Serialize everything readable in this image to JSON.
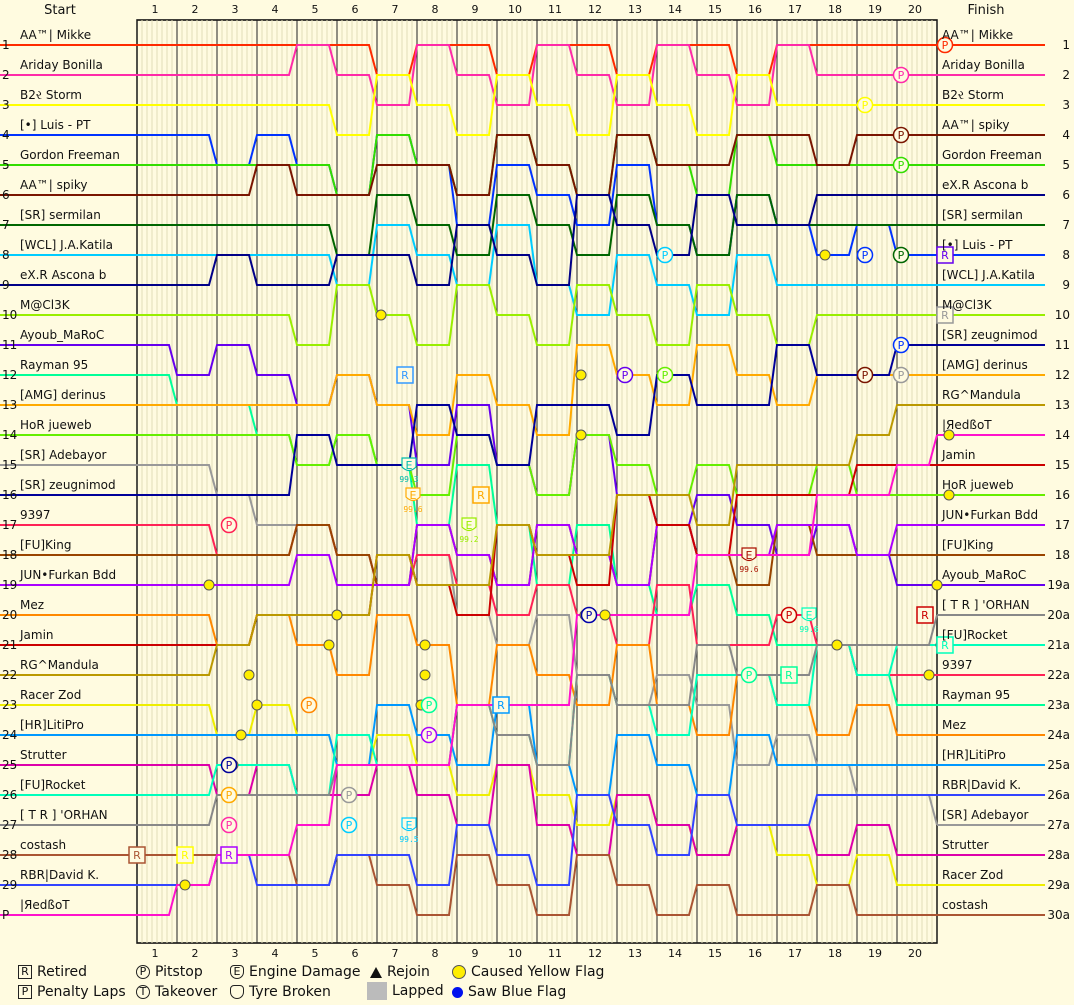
{
  "header": {
    "start": "Start",
    "finish": "Finish"
  },
  "chart_data": {
    "type": "line",
    "laps": [
      1,
      2,
      3,
      4,
      5,
      6,
      7,
      8,
      9,
      10,
      11,
      12,
      13,
      14,
      15,
      16,
      17,
      18,
      19,
      20
    ],
    "start_grid": [
      {
        "pos": "1",
        "name": "AA™| Mikke",
        "color": "#ff2a00"
      },
      {
        "pos": "2",
        "name": "Ariday Bonilla",
        "color": "#ff2aa8"
      },
      {
        "pos": "3",
        "name": "B2ર Storm",
        "color": "#ffff00"
      },
      {
        "pos": "4",
        "name": "[•] Luis - PT",
        "color": "#0033ff"
      },
      {
        "pos": "5",
        "name": "Gordon Freeman",
        "color": "#33dd00"
      },
      {
        "pos": "6",
        "name": "AA™| spiky",
        "color": "#7a1500"
      },
      {
        "pos": "7",
        "name": "[SR] sermilan",
        "color": "#006600"
      },
      {
        "pos": "8",
        "name": "[WCL] J.A.Katila",
        "color": "#00ccff"
      },
      {
        "pos": "9",
        "name": "eX.R Ascona b",
        "color": "#000088"
      },
      {
        "pos": "10",
        "name": "M@Cl3K",
        "color": "#99ee00"
      },
      {
        "pos": "11",
        "name": "Ayoub_MaRoC",
        "color": "#6600ee"
      },
      {
        "pos": "12",
        "name": "Rayman 95",
        "color": "#00ff99"
      },
      {
        "pos": "13",
        "name": "[AMG] derinus",
        "color": "#ffaa00"
      },
      {
        "pos": "14",
        "name": "HoR jueweb",
        "color": "#66ee00"
      },
      {
        "pos": "15",
        "name": "[SR] Adebayor",
        "color": "#999999"
      },
      {
        "pos": "16",
        "name": "[SR] zeugnimod",
        "color": "#000099"
      },
      {
        "pos": "17",
        "name": "9397",
        "color": "#ff2255"
      },
      {
        "pos": "18",
        "name": "[FU]King",
        "color": "#994400"
      },
      {
        "pos": "19",
        "name": "JUN•Furkan Bdd",
        "color": "#aa00ff"
      },
      {
        "pos": "20",
        "name": "Mez",
        "color": "#ff8800"
      },
      {
        "pos": "21",
        "name": "Jamin",
        "color": "#cc0000"
      },
      {
        "pos": "22",
        "name": "RG^Mandula",
        "color": "#bb9900"
      },
      {
        "pos": "23",
        "name": "Racer Zod",
        "color": "#eeee00"
      },
      {
        "pos": "24",
        "name": "[HR]LitiPro",
        "color": "#0099ff"
      },
      {
        "pos": "25",
        "name": "Strutter",
        "color": "#dd00aa"
      },
      {
        "pos": "26",
        "name": "[FU]Rocket",
        "color": "#00ffbb"
      },
      {
        "pos": "27",
        "name": "[ T R ] 'ORHAN",
        "color": "#888888"
      },
      {
        "pos": "28",
        "name": "costash",
        "color": "#aa5533"
      },
      {
        "pos": "29",
        "name": "RBR|David K.",
        "color": "#3344ff"
      },
      {
        "pos": "P",
        "name": "|ЯedßoT",
        "color": "#ff11cc"
      }
    ],
    "finish_order": [
      {
        "pos": "1",
        "name": "AA™| Mikke",
        "color": "#ff2a00"
      },
      {
        "pos": "2",
        "name": "Ariday Bonilla",
        "color": "#ff2aa8"
      },
      {
        "pos": "3",
        "name": "B2ર Storm",
        "color": "#ffff00"
      },
      {
        "pos": "4",
        "name": "AA™| spiky",
        "color": "#7a1500"
      },
      {
        "pos": "5",
        "name": "Gordon Freeman",
        "color": "#33dd00"
      },
      {
        "pos": "6",
        "name": "eX.R Ascona b",
        "color": "#00ccff"
      },
      {
        "pos": "7",
        "name": "[SR] sermilan",
        "color": "#006600"
      },
      {
        "pos": "8",
        "name": "[•] Luis - PT",
        "color": "#0033ff"
      },
      {
        "pos": "9",
        "name": "[WCL] J.A.Katila",
        "color": "#000088"
      },
      {
        "pos": "10",
        "name": "M@Cl3K",
        "color": "#99ee00"
      },
      {
        "pos": "11",
        "name": "[SR] zeugnimod",
        "color": "#000099"
      },
      {
        "pos": "12",
        "name": "[AMG] derinus",
        "color": "#ffaa00"
      },
      {
        "pos": "13",
        "name": "RG^Mandula",
        "color": "#bb9900"
      },
      {
        "pos": "14",
        "name": "|ЯedßoT",
        "color": "#ff11cc"
      },
      {
        "pos": "15",
        "name": "Jamin",
        "color": "#cc0000"
      },
      {
        "pos": "16",
        "name": "HoR jueweb",
        "color": "#66ee00"
      },
      {
        "pos": "17",
        "name": "JUN•Furkan Bdd",
        "color": "#aa00ff"
      },
      {
        "pos": "18",
        "name": "[FU]King",
        "color": "#994400"
      },
      {
        "pos": "19a",
        "name": "Ayoub_MaRoC",
        "color": "#6600ee"
      },
      {
        "pos": "20a",
        "name": "[ T R ] 'ORHAN",
        "color": "#888888"
      },
      {
        "pos": "21a",
        "name": "[FU]Rocket",
        "color": "#00ffbb"
      },
      {
        "pos": "22a",
        "name": "9397",
        "color": "#ff2255"
      },
      {
        "pos": "23a",
        "name": "Rayman 95",
        "color": "#00ff99"
      },
      {
        "pos": "24a",
        "name": "Mez",
        "color": "#ff8800"
      },
      {
        "pos": "25a",
        "name": "[HR]LitiPro",
        "color": "#0099ff"
      },
      {
        "pos": "26a",
        "name": "RBR|David K.",
        "color": "#3344ff"
      },
      {
        "pos": "27a",
        "name": "[SR] Adebayor",
        "color": "#999999"
      },
      {
        "pos": "28a",
        "name": "Strutter",
        "color": "#dd00aa"
      },
      {
        "pos": "29a",
        "name": "Racer Zod",
        "color": "#eeee00"
      },
      {
        "pos": "30a",
        "name": "costash",
        "color": "#aa5533"
      }
    ],
    "events": [
      {
        "lap": 20.2,
        "pos": 1,
        "type": "P",
        "color": "#ff2a00"
      },
      {
        "lap": 19.1,
        "pos": 2,
        "type": "P",
        "color": "#ff2aa8"
      },
      {
        "lap": 18.2,
        "pos": 3,
        "type": "P",
        "color": "#ffff00"
      },
      {
        "lap": 19.1,
        "pos": 4,
        "type": "P",
        "color": "#7a1500"
      },
      {
        "lap": 19.1,
        "pos": 5,
        "type": "P",
        "color": "#33dd00"
      },
      {
        "lap": 13.2,
        "pos": 8,
        "type": "P",
        "color": "#00ccff"
      },
      {
        "lap": 18.2,
        "pos": 8,
        "type": "P",
        "color": "#0033ff"
      },
      {
        "lap": 19.1,
        "pos": 8,
        "type": "P",
        "color": "#006600"
      },
      {
        "lap": 20.2,
        "pos": 8,
        "type": "R",
        "color": "#6600ee"
      },
      {
        "lap": 20.2,
        "pos": 10,
        "type": "R",
        "color": "#999999"
      },
      {
        "lap": 19.1,
        "pos": 11,
        "type": "P",
        "color": "#0033ff"
      },
      {
        "lap": 6.7,
        "pos": 12,
        "type": "R",
        "color": "#3399ff"
      },
      {
        "lap": 12.2,
        "pos": 12,
        "type": "P",
        "color": "#6600ee"
      },
      {
        "lap": 13.2,
        "pos": 12,
        "type": "P",
        "color": "#66ee00"
      },
      {
        "lap": 18.2,
        "pos": 12,
        "type": "P",
        "color": "#7a1500"
      },
      {
        "lap": 19.1,
        "pos": 12,
        "type": "P",
        "color": "#999999"
      },
      {
        "lap": 6.8,
        "pos": 15,
        "type": "E",
        "color": "#00bbaa"
      },
      {
        "lap": 6.9,
        "pos": 16,
        "type": "E",
        "color": "#ffaa00"
      },
      {
        "lap": 8.6,
        "pos": 16,
        "type": "R",
        "color": "#ffaa00"
      },
      {
        "lap": 8.3,
        "pos": 17,
        "type": "E",
        "color": "#99ee00"
      },
      {
        "lap": 2.3,
        "pos": 17,
        "type": "P",
        "color": "#ff2255"
      },
      {
        "lap": 15.3,
        "pos": 18,
        "type": "E",
        "color": "#aa1100"
      },
      {
        "lap": 11.3,
        "pos": 20,
        "type": "P",
        "color": "#0000aa"
      },
      {
        "lap": 16.3,
        "pos": 20,
        "type": "P",
        "color": "#cc0000"
      },
      {
        "lap": 16.8,
        "pos": 20,
        "type": "E",
        "color": "#00ffbb"
      },
      {
        "lap": 19.7,
        "pos": 20,
        "type": "R",
        "color": "#cc0000"
      },
      {
        "lap": 20.2,
        "pos": 21,
        "type": "R",
        "color": "#00ffbb"
      },
      {
        "lap": 15.3,
        "pos": 22,
        "type": "P",
        "color": "#00ff99"
      },
      {
        "lap": 16.3,
        "pos": 22,
        "type": "R",
        "color": "#00ff99"
      },
      {
        "lap": 4.3,
        "pos": 23,
        "type": "P",
        "color": "#ff8800"
      },
      {
        "lap": 7.3,
        "pos": 23,
        "type": "P",
        "color": "#00ff99"
      },
      {
        "lap": 9.1,
        "pos": 23,
        "type": "R",
        "color": "#0099ff"
      },
      {
        "lap": 7.3,
        "pos": 24,
        "type": "P",
        "color": "#aa00ff"
      },
      {
        "lap": 2.3,
        "pos": 25,
        "type": "P",
        "color": "#000099"
      },
      {
        "lap": 2.3,
        "pos": 26,
        "type": "P",
        "color": "#ffaa00"
      },
      {
        "lap": 5.3,
        "pos": 26,
        "type": "P",
        "color": "#999999"
      },
      {
        "lap": 2.3,
        "pos": 27,
        "type": "P",
        "color": "#ff2aa8"
      },
      {
        "lap": 5.3,
        "pos": 27,
        "type": "P",
        "color": "#00ccff"
      },
      {
        "lap": 6.8,
        "pos": 27,
        "type": "E",
        "color": "#00ccff"
      },
      {
        "lap": 0.0,
        "pos": 28,
        "type": "R",
        "color": "#aa5533"
      },
      {
        "lap": 1.2,
        "pos": 28,
        "type": "R",
        "color": "#ffff00"
      },
      {
        "lap": 2.3,
        "pos": 28,
        "type": "R",
        "color": "#aa00ff"
      }
    ],
    "engine_damage_labels": [
      {
        "lap": 6.8,
        "pos": 15,
        "text": "99.3",
        "color": "#00bbaa"
      },
      {
        "lap": 6.9,
        "pos": 16,
        "text": "99.6",
        "color": "#ffaa00"
      },
      {
        "lap": 8.3,
        "pos": 17,
        "text": "99.2",
        "color": "#99ee00"
      },
      {
        "lap": 15.3,
        "pos": 18,
        "text": "99.6",
        "color": "#aa1100"
      },
      {
        "lap": 16.8,
        "pos": 20,
        "text": "99.6",
        "color": "#00ffbb"
      },
      {
        "lap": 6.8,
        "pos": 27,
        "text": "99.5",
        "color": "#00ccff"
      }
    ],
    "yellow_flags": [
      {
        "lap": 6.1,
        "pos": 10
      },
      {
        "lap": 11.1,
        "pos": 12
      },
      {
        "lap": 11.1,
        "pos": 14
      },
      {
        "lap": 11.2,
        "pos": 20
      },
      {
        "lap": 11.7,
        "pos": 20
      },
      {
        "lap": 17.2,
        "pos": 8
      },
      {
        "lap": 17.5,
        "pos": 21
      },
      {
        "lap": 20.3,
        "pos": 14
      },
      {
        "lap": 20.3,
        "pos": 16
      },
      {
        "lap": 20.0,
        "pos": 19
      },
      {
        "lap": 20.1,
        "pos": 21
      },
      {
        "lap": 19.8,
        "pos": 22
      },
      {
        "lap": 1.8,
        "pos": 19
      },
      {
        "lap": 2.8,
        "pos": 22
      },
      {
        "lap": 3.0,
        "pos": 23
      },
      {
        "lap": 2.6,
        "pos": 24
      },
      {
        "lap": 2.4,
        "pos": 25
      },
      {
        "lap": 5.0,
        "pos": 20
      },
      {
        "lap": 4.8,
        "pos": 21
      },
      {
        "lap": 7.2,
        "pos": 21
      },
      {
        "lap": 7.2,
        "pos": 22
      },
      {
        "lap": 7.1,
        "pos": 23
      },
      {
        "lap": 1.2,
        "pos": 29
      }
    ]
  },
  "legend": {
    "retired": "Retired",
    "penalty": "Penalty Laps",
    "pitstop": "Pitstop",
    "takeover": "Takeover",
    "engine": "Engine Damage",
    "tyre": "Tyre Broken",
    "rejoin": "Rejoin",
    "lapped": "Lapped",
    "yellow": "Caused Yellow Flag",
    "blue": "Saw Blue Flag"
  },
  "legend_symbols": {
    "R": "R",
    "P": "P",
    "T": "T",
    "E": "E",
    "pen": "P"
  }
}
